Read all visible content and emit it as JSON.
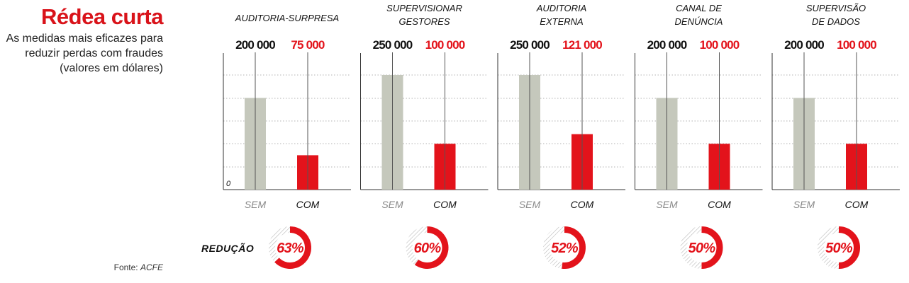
{
  "title": "Rédea curta",
  "subtitle": "As medidas mais eficazes para\nreduzir perdas com fraudes\n(valores em dólares)",
  "source_label": "Fonte: ",
  "source_name": "ACFE",
  "reduction_label": "REDUÇÃO",
  "zero_label": "0",
  "colors": {
    "without": "#c5c8bc",
    "with": "#e3131b",
    "accent": "#d9131a"
  },
  "chart_data": [
    {
      "type": "bar",
      "title": [
        "AUDITORIA-SURPRESA"
      ],
      "categories": [
        "SEM",
        "COM"
      ],
      "values": [
        200000,
        75000
      ],
      "value_labels": [
        "200 000",
        "75 000"
      ],
      "reduction_pct": 63,
      "reduction_label": "63%",
      "ylim": [
        0,
        250000
      ],
      "grid": true
    },
    {
      "type": "bar",
      "title": [
        "SUPERVISIONAR",
        "GESTORES"
      ],
      "categories": [
        "SEM",
        "COM"
      ],
      "values": [
        250000,
        100000
      ],
      "value_labels": [
        "250 000",
        "100 000"
      ],
      "reduction_pct": 60,
      "reduction_label": "60%",
      "ylim": [
        0,
        250000
      ],
      "grid": true
    },
    {
      "type": "bar",
      "title": [
        "AUDITORIA",
        "EXTERNA"
      ],
      "categories": [
        "SEM",
        "COM"
      ],
      "values": [
        250000,
        121000
      ],
      "value_labels": [
        "250 000",
        "121 000"
      ],
      "reduction_pct": 52,
      "reduction_label": "52%",
      "ylim": [
        0,
        250000
      ],
      "grid": true
    },
    {
      "type": "bar",
      "title": [
        "CANAL DE",
        "DENÚNCIA"
      ],
      "categories": [
        "SEM",
        "COM"
      ],
      "values": [
        200000,
        100000
      ],
      "value_labels": [
        "200 000",
        "100 000"
      ],
      "reduction_pct": 50,
      "reduction_label": "50%",
      "ylim": [
        0,
        250000
      ],
      "grid": true
    },
    {
      "type": "bar",
      "title": [
        "SUPERVISÃO",
        "DE DADOS"
      ],
      "categories": [
        "SEM",
        "COM"
      ],
      "values": [
        200000,
        100000
      ],
      "value_labels": [
        "200 000",
        "100 000"
      ],
      "reduction_pct": 50,
      "reduction_label": "50%",
      "ylim": [
        0,
        250000
      ],
      "grid": true
    }
  ]
}
